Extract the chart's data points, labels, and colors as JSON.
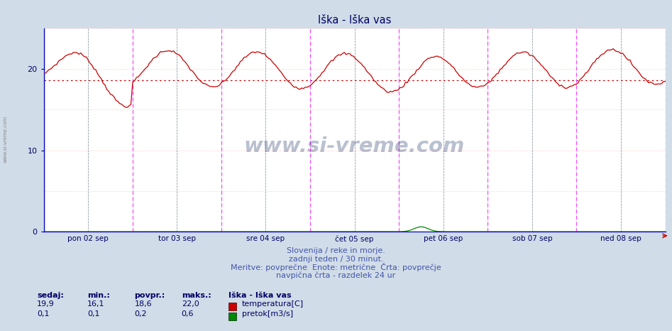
{
  "title": "Iška - Iška vas",
  "bg_color": "#d0dce8",
  "plot_bg_color": "#ffffff",
  "grid_color": "#c8d4e0",
  "temp_color": "#cc0000",
  "flow_color": "#008800",
  "avg_line_color": "#cc0000",
  "avg_temp": 18.6,
  "ylim_temp": [
    0,
    25
  ],
  "yticks_temp": [
    0,
    10,
    20
  ],
  "day_labels": [
    "pon 02 sep",
    "tor 03 sep",
    "sre 04 sep",
    "čet 05 sep",
    "pet 06 sep",
    "sob 07 sep",
    "ned 08 sep"
  ],
  "n_days": 7,
  "n_points": 336,
  "stats_sedaj_temp": "19,9",
  "stats_min_temp": "16,1",
  "stats_povpr_temp": "18,6",
  "stats_maks_temp": "22,0",
  "stats_sedaj_flow": "0,1",
  "stats_min_flow": "0,1",
  "stats_povpr_flow": "0,2",
  "stats_maks_flow": "0,6",
  "subtitle1": "Slovenija / reke in morje.",
  "subtitle2": "zadnji teden / 30 minut.",
  "subtitle3": "Meritve: povprečne  Enote: metrične  Črta: povprečje",
  "subtitle4": "navpična črta - razdelek 24 ur",
  "legend_station": "Iška - Iška vas",
  "legend_temp": "temperatura[C]",
  "legend_flow": "pretok[m3/s]",
  "watermark": "www.si-vreme.com",
  "left_label": "www.si-vreme.com",
  "magenta_vline_color": "#ff44ff",
  "black_vline_color": "#555555",
  "text_color": "#000066",
  "subtitle_color": "#4455aa"
}
